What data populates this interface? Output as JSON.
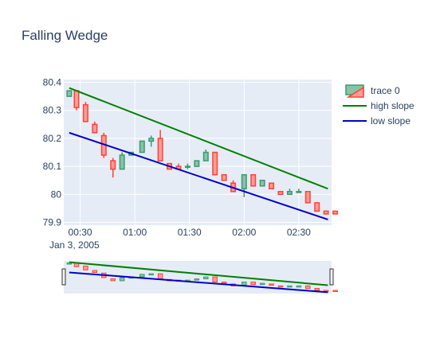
{
  "chart_data": {
    "type": "candlestick",
    "title": "Falling Wedge",
    "x_tick_labels": [
      "00:30",
      "01:00",
      "01:30",
      "02:00",
      "02:30"
    ],
    "x_tick_minutes": [
      30,
      60,
      90,
      120,
      150
    ],
    "x_sublabel": "Jan 3, 2005",
    "y_tick_labels": [
      "80.4",
      "80.3",
      "80.2",
      "80.1",
      "80",
      "79.9"
    ],
    "y_tick_values": [
      80.4,
      80.3,
      80.2,
      80.1,
      80.0,
      79.9
    ],
    "xlim_minutes": [
      21,
      168
    ],
    "ylim": [
      79.89,
      80.41
    ],
    "range_slider": true,
    "grid": true,
    "legend_position": "top-right",
    "colors": {
      "increasing": "#3d9970",
      "increasing_fill": "#86c4a6",
      "decreasing": "#ff4136",
      "decreasing_fill": "#ff9d97",
      "high_slope": "#008000",
      "low_slope": "#0000cc",
      "plot_bg": "#e5ecf6"
    },
    "series": [
      {
        "name": "trace 0",
        "kind": "ohlc",
        "points": [
          {
            "t": 24,
            "o": 80.35,
            "h": 80.37,
            "l": 80.35,
            "c": 80.37
          },
          {
            "t": 28,
            "o": 80.37,
            "h": 80.37,
            "l": 80.3,
            "c": 80.31
          },
          {
            "t": 33,
            "o": 80.32,
            "h": 80.33,
            "l": 80.26,
            "c": 80.26
          },
          {
            "t": 38,
            "o": 80.25,
            "h": 80.26,
            "l": 80.22,
            "c": 80.22
          },
          {
            "t": 43,
            "o": 80.21,
            "h": 80.22,
            "l": 80.13,
            "c": 80.14
          },
          {
            "t": 48,
            "o": 80.12,
            "h": 80.13,
            "l": 80.06,
            "c": 80.09
          },
          {
            "t": 53,
            "o": 80.09,
            "h": 80.15,
            "l": 80.09,
            "c": 80.14
          },
          {
            "t": 58,
            "o": 80.14,
            "h": 80.15,
            "l": 80.14,
            "c": 80.15
          },
          {
            "t": 64,
            "o": 80.15,
            "h": 80.19,
            "l": 80.15,
            "c": 80.19
          },
          {
            "t": 69,
            "o": 80.19,
            "h": 80.21,
            "l": 80.17,
            "c": 80.2
          },
          {
            "t": 74,
            "o": 80.2,
            "h": 80.23,
            "l": 80.12,
            "c": 80.12
          },
          {
            "t": 79,
            "o": 80.11,
            "h": 80.11,
            "l": 80.09,
            "c": 80.09
          },
          {
            "t": 84,
            "o": 80.1,
            "h": 80.11,
            "l": 80.09,
            "c": 80.09
          },
          {
            "t": 89,
            "o": 80.1,
            "h": 80.11,
            "l": 80.09,
            "c": 80.1
          },
          {
            "t": 94,
            "o": 80.1,
            "h": 80.12,
            "l": 80.1,
            "c": 80.12
          },
          {
            "t": 99,
            "o": 80.12,
            "h": 80.16,
            "l": 80.12,
            "c": 80.15
          },
          {
            "t": 104,
            "o": 80.15,
            "h": 80.15,
            "l": 80.07,
            "c": 80.07
          },
          {
            "t": 109,
            "o": 80.07,
            "h": 80.07,
            "l": 80.05,
            "c": 80.05
          },
          {
            "t": 114,
            "o": 80.04,
            "h": 80.05,
            "l": 80.01,
            "c": 80.01
          },
          {
            "t": 120,
            "o": 80.02,
            "h": 80.07,
            "l": 79.99,
            "c": 80.07
          },
          {
            "t": 125,
            "o": 80.07,
            "h": 80.07,
            "l": 80.03,
            "c": 80.03
          },
          {
            "t": 130,
            "o": 80.03,
            "h": 80.05,
            "l": 80.03,
            "c": 80.05
          },
          {
            "t": 135,
            "o": 80.04,
            "h": 80.04,
            "l": 80.02,
            "c": 80.02
          },
          {
            "t": 140,
            "o": 80.01,
            "h": 80.01,
            "l": 80.0,
            "c": 80.0
          },
          {
            "t": 145,
            "o": 80.0,
            "h": 80.02,
            "l": 80.0,
            "c": 80.01
          },
          {
            "t": 150,
            "o": 80.01,
            "h": 80.02,
            "l": 80.01,
            "c": 80.01
          },
          {
            "t": 155,
            "o": 80.01,
            "h": 80.01,
            "l": 79.97,
            "c": 79.97
          },
          {
            "t": 160,
            "o": 79.97,
            "h": 79.97,
            "l": 79.94,
            "c": 79.94
          },
          {
            "t": 165,
            "o": 79.94,
            "h": 79.94,
            "l": 79.93,
            "c": 79.93
          },
          {
            "t": 170,
            "o": 79.94,
            "h": 79.94,
            "l": 79.93,
            "c": 79.93
          }
        ]
      },
      {
        "name": "high slope",
        "kind": "line",
        "x": [
          24,
          166
        ],
        "y": [
          80.38,
          80.02
        ]
      },
      {
        "name": "low slope",
        "kind": "line",
        "x": [
          24,
          166
        ],
        "y": [
          80.22,
          79.91
        ]
      }
    ]
  }
}
